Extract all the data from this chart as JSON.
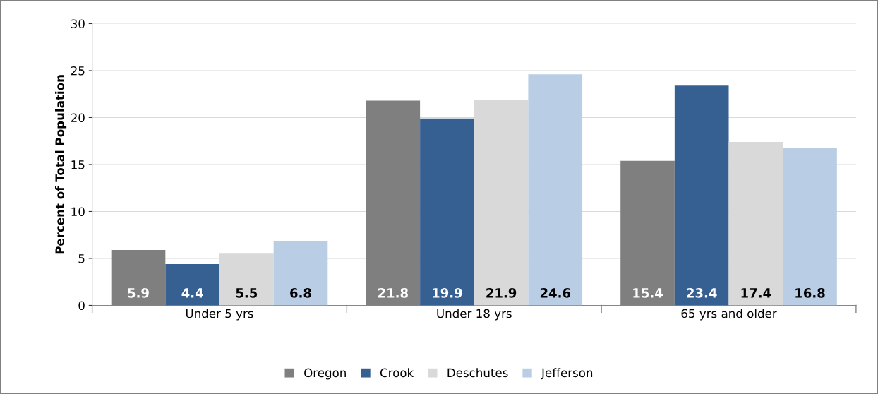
{
  "chart_data": {
    "type": "bar",
    "ylabel": "Percent of Total Population",
    "categories": [
      "Under 5 yrs",
      "Under 18 yrs",
      "65 yrs and older"
    ],
    "series": [
      {
        "name": "Oregon",
        "color": "#7f7f7f",
        "values": [
          5.9,
          21.8,
          15.4
        ]
      },
      {
        "name": "Crook",
        "color": "#376092",
        "values": [
          4.4,
          19.9,
          23.4
        ]
      },
      {
        "name": "Deschutes",
        "color": "#d9d9d9",
        "values": [
          5.5,
          21.9,
          17.4
        ]
      },
      {
        "name": "Jefferson",
        "color": "#b9cde5",
        "values": [
          6.8,
          24.6,
          16.8
        ]
      }
    ],
    "ylim": [
      0,
      30
    ],
    "yticks": [
      0,
      5,
      10,
      15,
      20,
      25,
      30
    ],
    "grid": "y",
    "legend": "bottom",
    "data_labels": true
  }
}
